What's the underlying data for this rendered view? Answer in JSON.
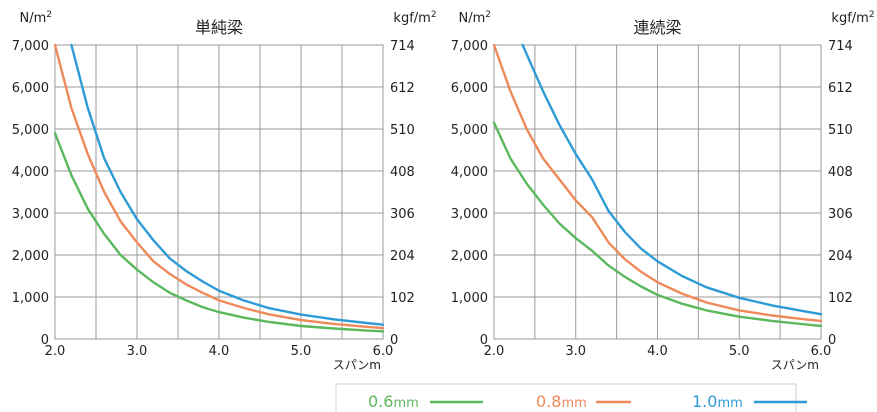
{
  "colors": {
    "s06": "#5cb85c",
    "s08": "#ee8a5a",
    "s10": "#2e9bd6",
    "grid": "#9a9a9a"
  },
  "legend": [
    {
      "num": "0.6",
      "unit": "mm",
      "series": "0.6mm"
    },
    {
      "num": "0.8",
      "unit": "mm",
      "series": "0.8mm"
    },
    {
      "num": "1.0",
      "unit": "mm",
      "series": "1.0mm"
    }
  ],
  "chart_data": [
    {
      "type": "line",
      "title": "単純梁",
      "ylabel_left": "N/m²",
      "ylabel_right": "kgf/m²",
      "xlabel": "スパンm",
      "xlim": [
        2.0,
        6.0
      ],
      "ylim": [
        0,
        7000
      ],
      "xticks": [
        "2.0",
        "3.0",
        "4.0",
        "5.0",
        "6.0"
      ],
      "yticks_left": [
        "0",
        "1,000",
        "2,000",
        "3,000",
        "4,000",
        "5,000",
        "6,000",
        "7,000"
      ],
      "yticks_right": [
        "0",
        "102",
        "204",
        "306",
        "408",
        "510",
        "612",
        "714"
      ],
      "grid": true,
      "series": [
        {
          "name": "0.6mm",
          "x": [
            2.0,
            2.2,
            2.4,
            2.6,
            2.8,
            3.0,
            3.2,
            3.4,
            3.6,
            3.8,
            4.0,
            4.3,
            4.6,
            5.0,
            5.4,
            5.8,
            6.0
          ],
          "y": [
            4900,
            3900,
            3100,
            2500,
            2000,
            1650,
            1350,
            1100,
            920,
            760,
            640,
            510,
            410,
            310,
            250,
            200,
            180
          ]
        },
        {
          "name": "0.8mm",
          "x": [
            2.0,
            2.2,
            2.4,
            2.6,
            2.8,
            3.0,
            3.2,
            3.4,
            3.6,
            3.8,
            4.0,
            4.3,
            4.6,
            5.0,
            5.4,
            5.8,
            6.0
          ],
          "y": [
            7000,
            5500,
            4400,
            3500,
            2800,
            2300,
            1850,
            1550,
            1300,
            1100,
            920,
            740,
            590,
            450,
            360,
            290,
            260
          ]
        },
        {
          "name": "1.0mm",
          "x": [
            2.2,
            2.4,
            2.6,
            2.8,
            3.0,
            3.2,
            3.4,
            3.6,
            3.8,
            4.0,
            4.3,
            4.6,
            5.0,
            5.4,
            5.8,
            6.0
          ],
          "y": [
            7000,
            5500,
            4300,
            3500,
            2850,
            2350,
            1920,
            1620,
            1370,
            1150,
            920,
            740,
            580,
            470,
            380,
            340
          ]
        }
      ]
    },
    {
      "type": "line",
      "title": "連続梁",
      "ylabel_left": "N/m²",
      "ylabel_right": "kgf/m²",
      "xlabel": "スパンm",
      "xlim": [
        2.0,
        6.0
      ],
      "ylim": [
        0,
        7000
      ],
      "xticks": [
        "2.0",
        "3.0",
        "4.0",
        "5.0",
        "6.0"
      ],
      "yticks_left": [
        "0",
        "1,000",
        "2,000",
        "3,000",
        "4,000",
        "5,000",
        "6,000",
        "7,000"
      ],
      "yticks_right": [
        "0",
        "102",
        "204",
        "306",
        "408",
        "510",
        "612",
        "714"
      ],
      "grid": true,
      "series": [
        {
          "name": "0.6mm",
          "x": [
            2.0,
            2.2,
            2.4,
            2.6,
            2.8,
            3.0,
            3.2,
            3.4,
            3.6,
            3.8,
            4.0,
            4.3,
            4.6,
            5.0,
            5.4,
            5.8,
            6.0
          ],
          "y": [
            5150,
            4300,
            3700,
            3200,
            2750,
            2400,
            2100,
            1750,
            1480,
            1250,
            1050,
            840,
            680,
            530,
            430,
            350,
            310
          ]
        },
        {
          "name": "0.8mm",
          "x": [
            2.0,
            2.2,
            2.4,
            2.6,
            2.8,
            3.0,
            3.2,
            3.4,
            3.6,
            3.8,
            4.0,
            4.3,
            4.6,
            5.0,
            5.4,
            5.8,
            6.0
          ],
          "y": [
            7000,
            5900,
            5000,
            4300,
            3800,
            3300,
            2900,
            2300,
            1900,
            1600,
            1350,
            1080,
            870,
            680,
            560,
            470,
            430
          ]
        },
        {
          "name": "1.0mm",
          "x": [
            2.35,
            2.6,
            2.8,
            3.0,
            3.2,
            3.4,
            3.6,
            3.8,
            4.0,
            4.3,
            4.6,
            5.0,
            5.4,
            5.8,
            6.0
          ],
          "y": [
            7000,
            5900,
            5100,
            4400,
            3800,
            3050,
            2550,
            2150,
            1850,
            1500,
            1230,
            980,
            800,
            660,
            590
          ]
        }
      ]
    }
  ]
}
